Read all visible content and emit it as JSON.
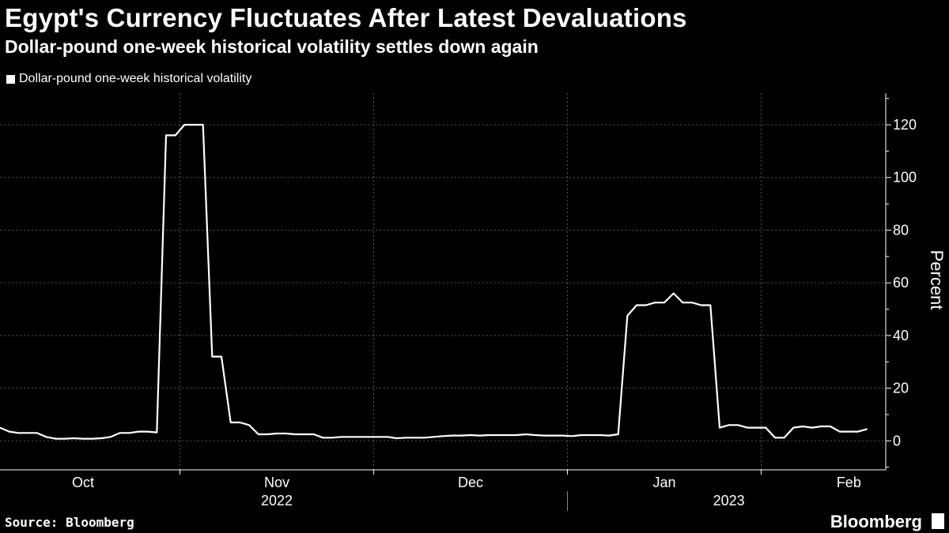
{
  "header": {
    "title": "Egypt's Currency Fluctuates After Latest Devaluations",
    "subtitle": "Dollar-pound one-week historical volatility settles down again"
  },
  "footer": {
    "source": "Source: Bloomberg",
    "brand": "Bloomberg"
  },
  "colors": {
    "background": "#000000",
    "line": "#ffffff",
    "grid": "#555555"
  },
  "chart_data": {
    "type": "line",
    "title": "Egypt's Currency Fluctuates After Latest Devaluations",
    "subtitle": "Dollar-pound one-week historical volatility settles down again",
    "legend": [
      "Dollar-pound one-week historical volatility"
    ],
    "legend_position": "top-left",
    "ylabel": "Percent",
    "ylim": [
      -11,
      132
    ],
    "yticks": [
      0,
      20,
      40,
      60,
      80,
      100,
      120
    ],
    "xlabel": "",
    "x_range": [
      0,
      96
    ],
    "month_ticks": [
      {
        "label": "Oct",
        "x": 9
      },
      {
        "label": "Nov",
        "x": 30
      },
      {
        "label": "Dec",
        "x": 51
      },
      {
        "label": "Jan",
        "x": 72
      },
      {
        "label": "Feb",
        "x": 92
      }
    ],
    "year_labels": [
      {
        "label": "2022",
        "x": 30
      },
      {
        "label": "2023",
        "x": 79
      }
    ],
    "year_divider_x": 61.5,
    "vgrid_x": [
      19.5,
      40.5,
      61.5,
      82.5
    ],
    "series": [
      {
        "name": "Dollar-pound one-week historical volatility",
        "x": [
          0,
          1,
          2,
          3,
          4,
          5,
          6,
          7,
          8,
          9,
          10,
          11,
          12,
          13,
          14,
          15,
          16,
          17,
          18,
          19,
          20,
          21,
          22,
          23,
          24,
          25,
          26,
          27,
          28,
          29,
          30,
          31,
          32,
          33,
          34,
          35,
          36,
          37,
          38,
          39,
          40,
          41,
          42,
          43,
          44,
          45,
          46,
          47,
          48,
          49,
          50,
          51,
          52,
          53,
          54,
          55,
          56,
          57,
          58,
          59,
          60,
          61,
          62,
          63,
          64,
          65,
          66,
          67,
          68,
          69,
          70,
          71,
          72,
          73,
          74,
          75,
          76,
          77,
          78,
          79,
          80,
          81,
          82,
          83,
          84,
          85,
          86,
          87,
          88,
          89,
          90,
          91,
          92,
          93,
          94
        ],
        "values": [
          5,
          3.5,
          3,
          3,
          3,
          1.5,
          0.8,
          0.8,
          1,
          0.8,
          0.8,
          1,
          1.5,
          3,
          3,
          3.5,
          3.5,
          3.2,
          116,
          116,
          120,
          120,
          120,
          32,
          32,
          7,
          7,
          6,
          2.5,
          2.5,
          2.8,
          2.8,
          2.5,
          2.5,
          2.5,
          1.2,
          1.2,
          1.5,
          1.5,
          1.5,
          1.5,
          1.5,
          1.5,
          1,
          1.2,
          1.2,
          1.2,
          1.5,
          1.8,
          2,
          2,
          2.2,
          2,
          2.2,
          2.2,
          2.2,
          2.2,
          2.5,
          2.2,
          2,
          2,
          2,
          1.8,
          2.2,
          2.2,
          2.2,
          2,
          2.5,
          47.5,
          51.5,
          51.5,
          52.5,
          52.5,
          56,
          52.5,
          52.5,
          51.5,
          51.5,
          5,
          6,
          6,
          5,
          5,
          5,
          1.2,
          1.2,
          5,
          5.5,
          5,
          5.5,
          5.5,
          3.5,
          3.5,
          3.5,
          4.5
        ]
      }
    ]
  }
}
